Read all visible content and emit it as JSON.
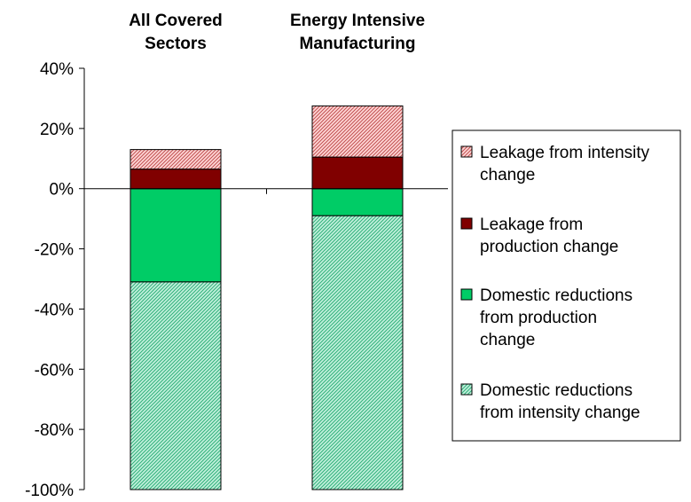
{
  "chart_data": {
    "type": "bar",
    "stacked": true,
    "categories": [
      "All Covered Sectors",
      "Energy Intensive Manufacturing"
    ],
    "category_label_lines": [
      [
        "All Covered",
        "Sectors"
      ],
      [
        "Energy Intensive",
        "Manufacturing"
      ]
    ],
    "series": [
      {
        "name": "Leakage from intensity change",
        "legend_lines": [
          "Leakage from intensity",
          "change"
        ],
        "values": [
          6.5,
          17
        ],
        "color": "#ff9999",
        "pattern": "hatch-red"
      },
      {
        "name": "Leakage from production change",
        "legend_lines": [
          "Leakage from",
          "production change"
        ],
        "values": [
          6.5,
          10.5
        ],
        "color": "#800000",
        "pattern": "solid"
      },
      {
        "name": "Domestic reductions from production change",
        "legend_lines": [
          "Domestic reductions",
          "from production",
          "change"
        ],
        "values": [
          -31,
          -9
        ],
        "color": "#00cc66",
        "pattern": "solid"
      },
      {
        "name": "Domestic reductions from intensity change",
        "legend_lines": [
          "Domestic reductions",
          "from intensity change"
        ],
        "values": [
          -69,
          -91
        ],
        "color": "#33cc99",
        "pattern": "hatch-green"
      }
    ],
    "yticks": [
      "40%",
      "20%",
      "0%",
      "-20%",
      "-40%",
      "-60%",
      "-80%",
      "-100%"
    ],
    "ytick_values": [
      40,
      20,
      0,
      -20,
      -40,
      -60,
      -80,
      -100
    ],
    "ylim": [
      -100,
      40
    ],
    "title": "",
    "xlabel": "",
    "ylabel": "",
    "grid": false,
    "legend_position": "right"
  }
}
